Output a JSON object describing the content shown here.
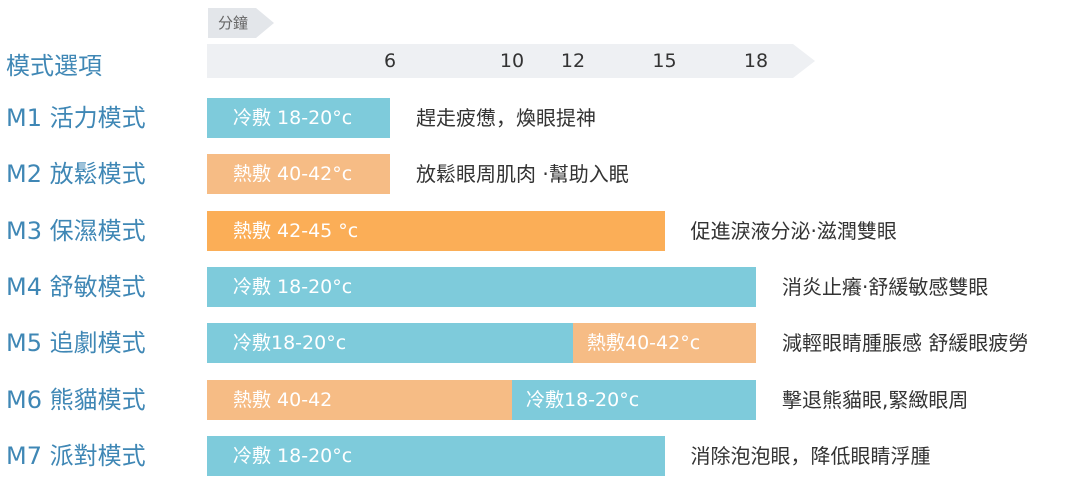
{
  "chart_data": {
    "type": "bar",
    "orientation": "horizontal",
    "stacked": true,
    "title": "",
    "header_label": "模式選項",
    "unit": "分鐘",
    "x_ticks": [
      6,
      10,
      12,
      15,
      18
    ],
    "xlim": [
      0,
      18
    ],
    "rows": [
      {
        "mode": "M1 活力模式",
        "segments": [
          {
            "label": "冷敷 18-20°c",
            "kind": "cold",
            "start": 0,
            "end": 6
          }
        ],
        "description": "趕走疲憊，煥眼提神"
      },
      {
        "mode": "M2 放鬆模式",
        "segments": [
          {
            "label": "熱敷 40-42°c",
            "kind": "hot",
            "start": 0,
            "end": 6
          }
        ],
        "description": "放鬆眼周肌肉 ·幫助入眠"
      },
      {
        "mode": "M3 保濕模式",
        "segments": [
          {
            "label": "熱敷 42-45 °c",
            "kind": "hot-strong",
            "start": 0,
            "end": 15
          }
        ],
        "description": "促進淚液分泌·滋潤雙眼"
      },
      {
        "mode": "M4 舒敏模式",
        "segments": [
          {
            "label": "冷敷 18-20°c",
            "kind": "cold",
            "start": 0,
            "end": 18
          }
        ],
        "description": "消炎止癢·舒緩敏感雙眼"
      },
      {
        "mode": "M5 追劇模式",
        "segments": [
          {
            "label": "冷敷18-20°c",
            "kind": "cold",
            "start": 0,
            "end": 12
          },
          {
            "label": "熱敷40-42°c",
            "kind": "hot",
            "start": 12,
            "end": 18
          }
        ],
        "description": "減輕眼睛腫脹感 舒緩眼疲勞"
      },
      {
        "mode": "M6 熊貓模式",
        "segments": [
          {
            "label": "熱敷 40-42",
            "kind": "hot",
            "start": 0,
            "end": 10
          },
          {
            "label": "冷敷18-20°c",
            "kind": "cold",
            "start": 10,
            "end": 18
          }
        ],
        "description": "擊退熊貓眼,緊緻眼周"
      },
      {
        "mode": "M7 派對模式",
        "segments": [
          {
            "label": "冷敷 18-20°c",
            "kind": "cold",
            "start": 0,
            "end": 15
          }
        ],
        "description": "消除泡泡眼，降低眼睛浮腫"
      }
    ]
  }
}
